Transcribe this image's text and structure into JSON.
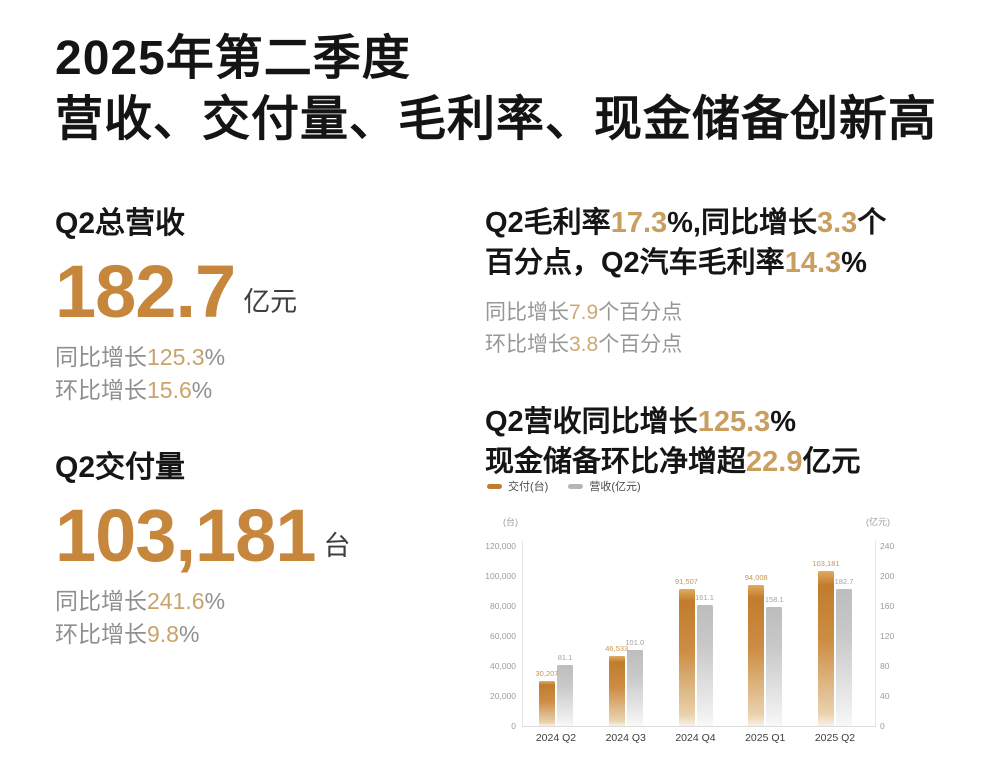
{
  "title": {
    "line1": "2025年第二季度",
    "line2": "营收、交付量、毛利率、现金储备创新高"
  },
  "accent_colors": {
    "big_number": "#c6873c",
    "inline_number": "#cba26a",
    "bar_orange": "#c5812f",
    "bar_gray": "#c2c2c2"
  },
  "stats": {
    "revenue": {
      "label": "Q2总营收",
      "value": "182.7",
      "unit": "亿元",
      "yoy": [
        {
          "t": "同比增长",
          "a": false
        },
        {
          "t": "125.3",
          "a": true
        },
        {
          "t": "%",
          "a": false
        }
      ],
      "qoq": [
        {
          "t": "环比增长",
          "a": false
        },
        {
          "t": "15.6",
          "a": true
        },
        {
          "t": "%",
          "a": false
        }
      ]
    },
    "delivery": {
      "label": "Q2交付量",
      "value": "103,181",
      "unit": "台",
      "yoy": [
        {
          "t": "同比增长",
          "a": false
        },
        {
          "t": "241.6",
          "a": true
        },
        {
          "t": "%",
          "a": false
        }
      ],
      "qoq": [
        {
          "t": "环比增长",
          "a": false
        },
        {
          "t": "9.8",
          "a": true
        },
        {
          "t": "%",
          "a": false
        }
      ]
    }
  },
  "margin_block": {
    "line1": [
      {
        "t": "Q2毛利率",
        "a": false
      },
      {
        "t": "17.3",
        "a": true
      },
      {
        "t": "%,同比增长",
        "a": false
      },
      {
        "t": "3.3",
        "a": true
      },
      {
        "t": "个",
        "a": false
      }
    ],
    "line2": [
      {
        "t": "百分点，Q2汽车毛利率",
        "a": false
      },
      {
        "t": "14.3",
        "a": true
      },
      {
        "t": "%",
        "a": false
      }
    ],
    "sub1": [
      {
        "t": "同比增长",
        "a": false
      },
      {
        "t": "7.9",
        "a": true
      },
      {
        "t": "个百分点",
        "a": false
      }
    ],
    "sub2": [
      {
        "t": "环比增长",
        "a": false
      },
      {
        "t": "3.8",
        "a": true
      },
      {
        "t": "个百分点",
        "a": false
      }
    ]
  },
  "growth_block": {
    "line1": [
      {
        "t": "Q2营收同比增长",
        "a": false
      },
      {
        "t": "125.3",
        "a": true
      },
      {
        "t": "%",
        "a": false
      }
    ],
    "line2": [
      {
        "t": "现金储备环比净增超",
        "a": false
      },
      {
        "t": "22.9",
        "a": true
      },
      {
        "t": "亿元",
        "a": false
      }
    ]
  },
  "legend": {
    "deliveries": "交付(台)",
    "revenue": "营收(亿元)"
  },
  "chart_data": {
    "type": "bar",
    "categories": [
      "2024 Q2",
      "2024 Q3",
      "2024 Q4",
      "2025 Q1",
      "2025 Q2"
    ],
    "series": [
      {
        "name": "交付(台)",
        "axis": "left",
        "values": [
          30207,
          46533,
          91507,
          94008,
          103181
        ],
        "labels": [
          "30,207",
          "46,533",
          "91,507",
          "94,008",
          "103,181"
        ]
      },
      {
        "name": "营收(亿元)",
        "axis": "right",
        "values": [
          81.1,
          101.0,
          161.1,
          158.1,
          182.7
        ],
        "labels": [
          "81.1",
          "101.0",
          "161.1",
          "158.1",
          "182.7"
        ]
      }
    ],
    "left_axis": {
      "unit": "(台)",
      "max": 120000,
      "ticks": [
        "120,000",
        "100,000",
        "80,000",
        "60,000",
        "40,000",
        "20,000",
        "0"
      ]
    },
    "right_axis": {
      "unit": "(亿元)",
      "max": 240,
      "ticks": [
        "240",
        "200",
        "160",
        "120",
        "80",
        "40",
        "0"
      ]
    },
    "grid": false,
    "legend_position": "top-left",
    "title": ""
  }
}
